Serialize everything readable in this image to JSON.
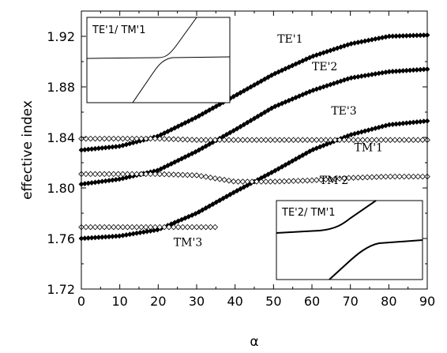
{
  "chart_data": {
    "type": "scatter",
    "xlabel": "α",
    "ylabel": "effective index",
    "xlim": [
      0,
      90
    ],
    "ylim": [
      1.72,
      1.94
    ],
    "xticks": [
      "0",
      "10",
      "20",
      "30",
      "40",
      "50",
      "60",
      "70",
      "80",
      "90"
    ],
    "yticks": [
      "1.72",
      "1.76",
      "1.80",
      "1.84",
      "1.88",
      "1.92"
    ],
    "series": [
      {
        "name": "TE'1",
        "marker": "filled-diamond",
        "label_at": [
          51,
          1.915
        ],
        "x": [
          0,
          10,
          20,
          30,
          40,
          50,
          60,
          70,
          80,
          90
        ],
        "y": [
          1.83,
          1.833,
          1.841,
          1.856,
          1.873,
          1.89,
          1.904,
          1.914,
          1.92,
          1.921
        ]
      },
      {
        "name": "TE'2",
        "marker": "filled-diamond",
        "label_at": [
          60,
          1.893
        ],
        "x": [
          0,
          10,
          20,
          30,
          40,
          50,
          60,
          70,
          80,
          90
        ],
        "y": [
          1.803,
          1.807,
          1.814,
          1.829,
          1.846,
          1.864,
          1.877,
          1.887,
          1.892,
          1.894
        ]
      },
      {
        "name": "TE'3",
        "marker": "filled-diamond",
        "label_at": [
          65,
          1.858
        ],
        "x": [
          0,
          10,
          20,
          30,
          40,
          50,
          60,
          70,
          80,
          90
        ],
        "y": [
          1.76,
          1.762,
          1.767,
          1.78,
          1.797,
          1.813,
          1.83,
          1.842,
          1.85,
          1.853
        ]
      },
      {
        "name": "TM'1",
        "marker": "open-diamond",
        "label_at": [
          71,
          1.829
        ],
        "x": [
          0,
          10,
          20,
          30,
          40,
          50,
          60,
          70,
          80,
          90
        ],
        "y": [
          1.839,
          1.839,
          1.839,
          1.838,
          1.838,
          1.838,
          1.838,
          1.838,
          1.838,
          1.838
        ]
      },
      {
        "name": "TM'2",
        "marker": "open-diamond",
        "label_at": [
          62,
          1.803
        ],
        "x": [
          0,
          10,
          20,
          30,
          40,
          50,
          60,
          70,
          80,
          90
        ],
        "y": [
          1.811,
          1.811,
          1.811,
          1.81,
          1.805,
          1.805,
          1.806,
          1.808,
          1.809,
          1.809
        ]
      },
      {
        "name": "TM'3",
        "marker": "open-diamond",
        "label_at": [
          24,
          1.754
        ],
        "x": [
          0,
          5,
          10,
          15,
          20,
          25,
          30,
          35
        ],
        "y": [
          1.769,
          1.769,
          1.769,
          1.769,
          1.769,
          1.769,
          1.769,
          1.769
        ]
      }
    ],
    "insets": [
      {
        "title": "TE'1/ TM'1",
        "position": "top-left"
      },
      {
        "title": "TE'2/ TM'1",
        "position": "bottom-right"
      }
    ]
  }
}
